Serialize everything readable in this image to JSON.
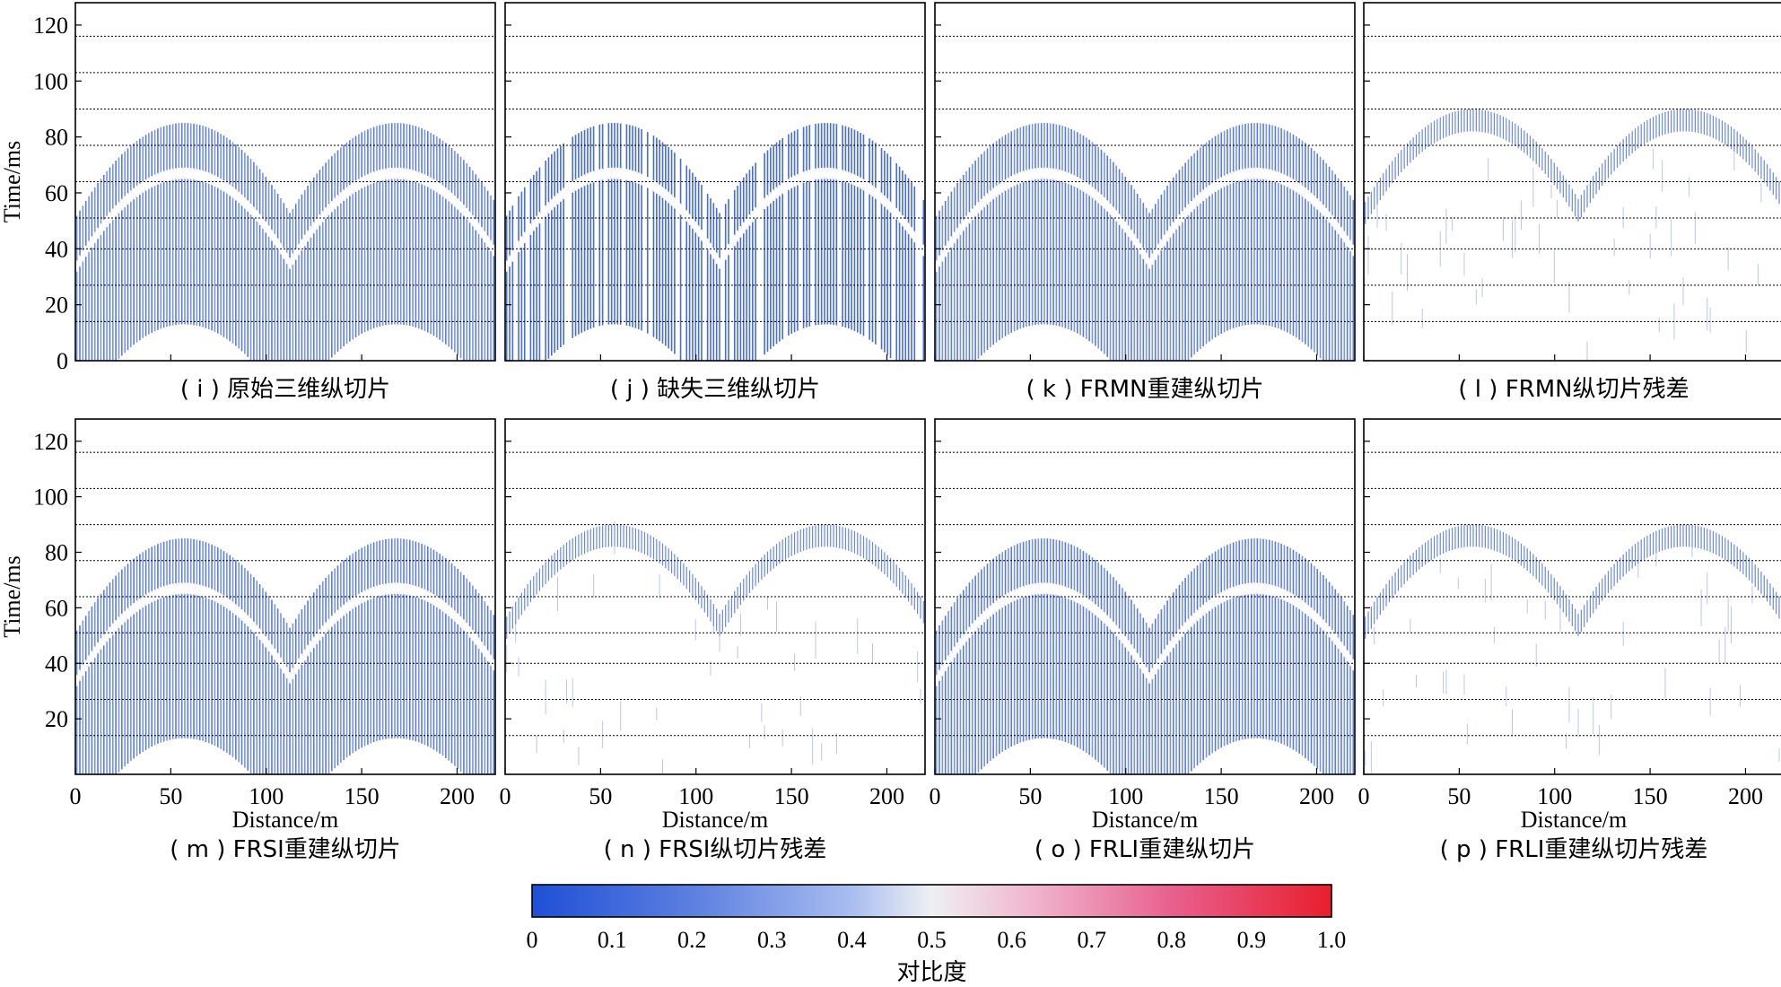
{
  "chart_data": {
    "type": "heatmap",
    "panels": [
      {
        "caption": "( i ) 原始三维纵切片",
        "kind": "full"
      },
      {
        "caption": "( j ) 缺失三维纵切片",
        "kind": "missing"
      },
      {
        "caption": "( k ) FRMN重建纵切片",
        "kind": "full"
      },
      {
        "caption": "( l ) FRMN纵切片残差",
        "kind": "residual"
      },
      {
        "caption": "( m ) FRSI重建纵切片",
        "kind": "full"
      },
      {
        "caption": "( n ) FRSI纵切片残差",
        "kind": "residual"
      },
      {
        "caption": "( o ) FRLI重建纵切片",
        "kind": "full"
      },
      {
        "caption": "( p ) FRLI重建纵切片残差",
        "kind": "residual"
      }
    ],
    "ylabel": "Time/ms",
    "xlabel": "Distance/m",
    "xlim": [
      0,
      220
    ],
    "ylim": [
      0,
      128
    ],
    "x_ticks": [
      0,
      50,
      100,
      150,
      200
    ],
    "y_ticks": [
      20,
      40,
      60,
      80,
      100,
      120
    ],
    "y_ticks_top_row": [
      0,
      20,
      40,
      60,
      80,
      100,
      120
    ],
    "x_tick_labels": [
      "0",
      "50",
      "100",
      "150",
      "200"
    ],
    "y_tick_labels_top": [
      "0",
      "20",
      "40",
      "60",
      "80",
      "100",
      "120"
    ],
    "y_tick_labels_bottom": [
      "20",
      "40",
      "60",
      "80",
      "100",
      "120"
    ],
    "apex_x": [
      57,
      168
    ],
    "apex_time": 85,
    "colorbar": {
      "label": "对比度",
      "range": [
        0,
        1
      ],
      "ticks": [
        "0",
        "0.1",
        "0.2",
        "0.3",
        "0.4",
        "0.5",
        "0.6",
        "0.7",
        "0.8",
        "0.9",
        "1.0"
      ],
      "colors": [
        "#1e4fd6",
        "#5c7fe0",
        "#a9bdf0",
        "#eef0f3",
        "#f0b8d0",
        "#e8608e",
        "#e81e2c"
      ]
    }
  }
}
